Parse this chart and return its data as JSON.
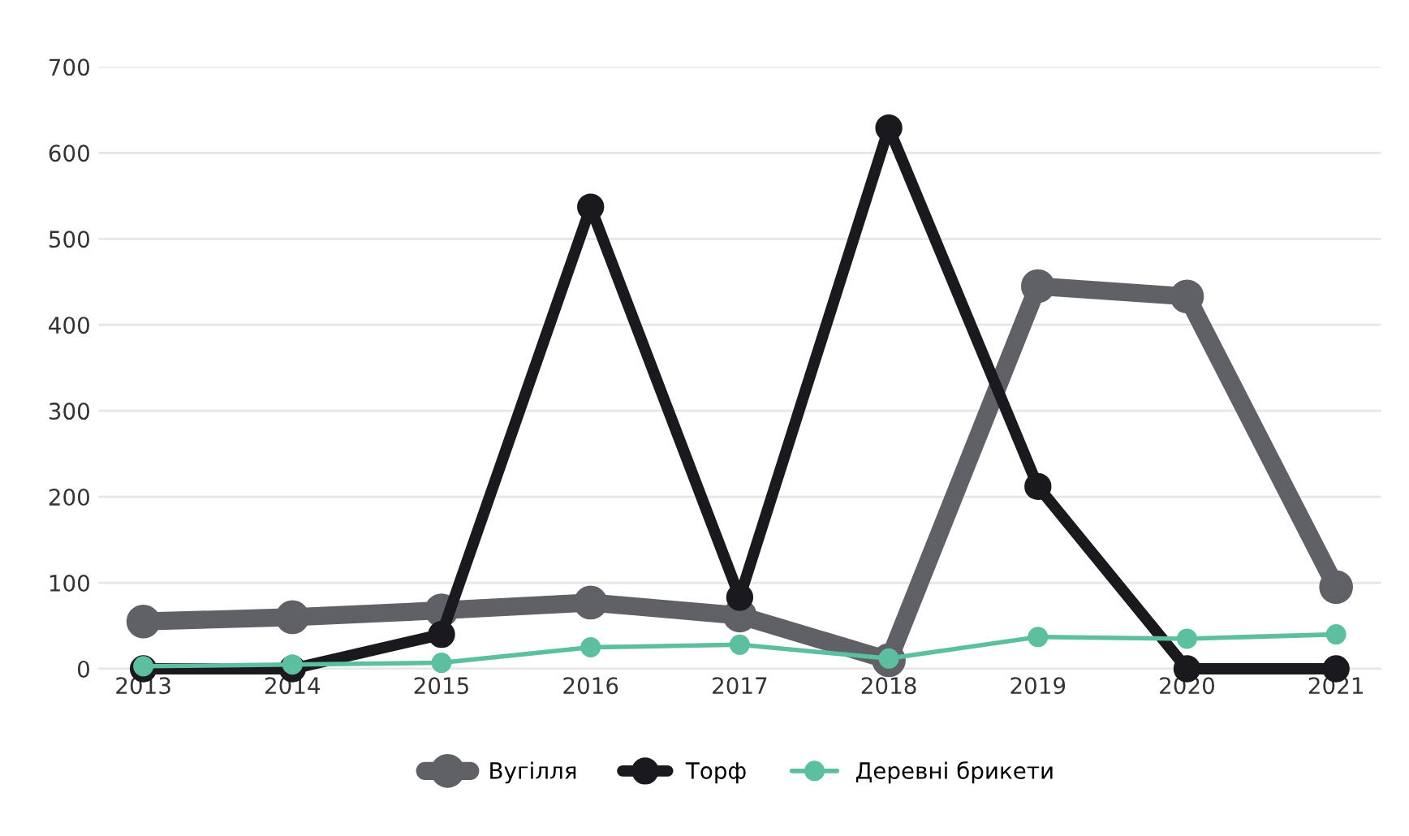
{
  "chart_data": {
    "type": "line",
    "categories": [
      "2013",
      "2014",
      "2015",
      "2016",
      "2017",
      "2018",
      "2019",
      "2020",
      "2021"
    ],
    "series": [
      {
        "name": "Вугілля",
        "color": "#606167",
        "values": [
          55,
          60,
          68,
          77,
          62,
          10,
          445,
          433,
          95
        ]
      },
      {
        "name": "Торф",
        "color": "#1a1a1e",
        "values": [
          0,
          0,
          40,
          537,
          83,
          629,
          212,
          0,
          0
        ]
      },
      {
        "name": "Деревні брикети",
        "color": "#5cbf9f",
        "values": [
          3,
          5,
          7,
          25,
          28,
          12,
          37,
          35,
          40
        ]
      }
    ],
    "ylim": [
      0,
      700
    ],
    "yticks": [
      0,
      100,
      200,
      300,
      400,
      500,
      600,
      700
    ],
    "grid": "y",
    "legend": "bottom",
    "marker": "circle",
    "line_style": "solid"
  }
}
